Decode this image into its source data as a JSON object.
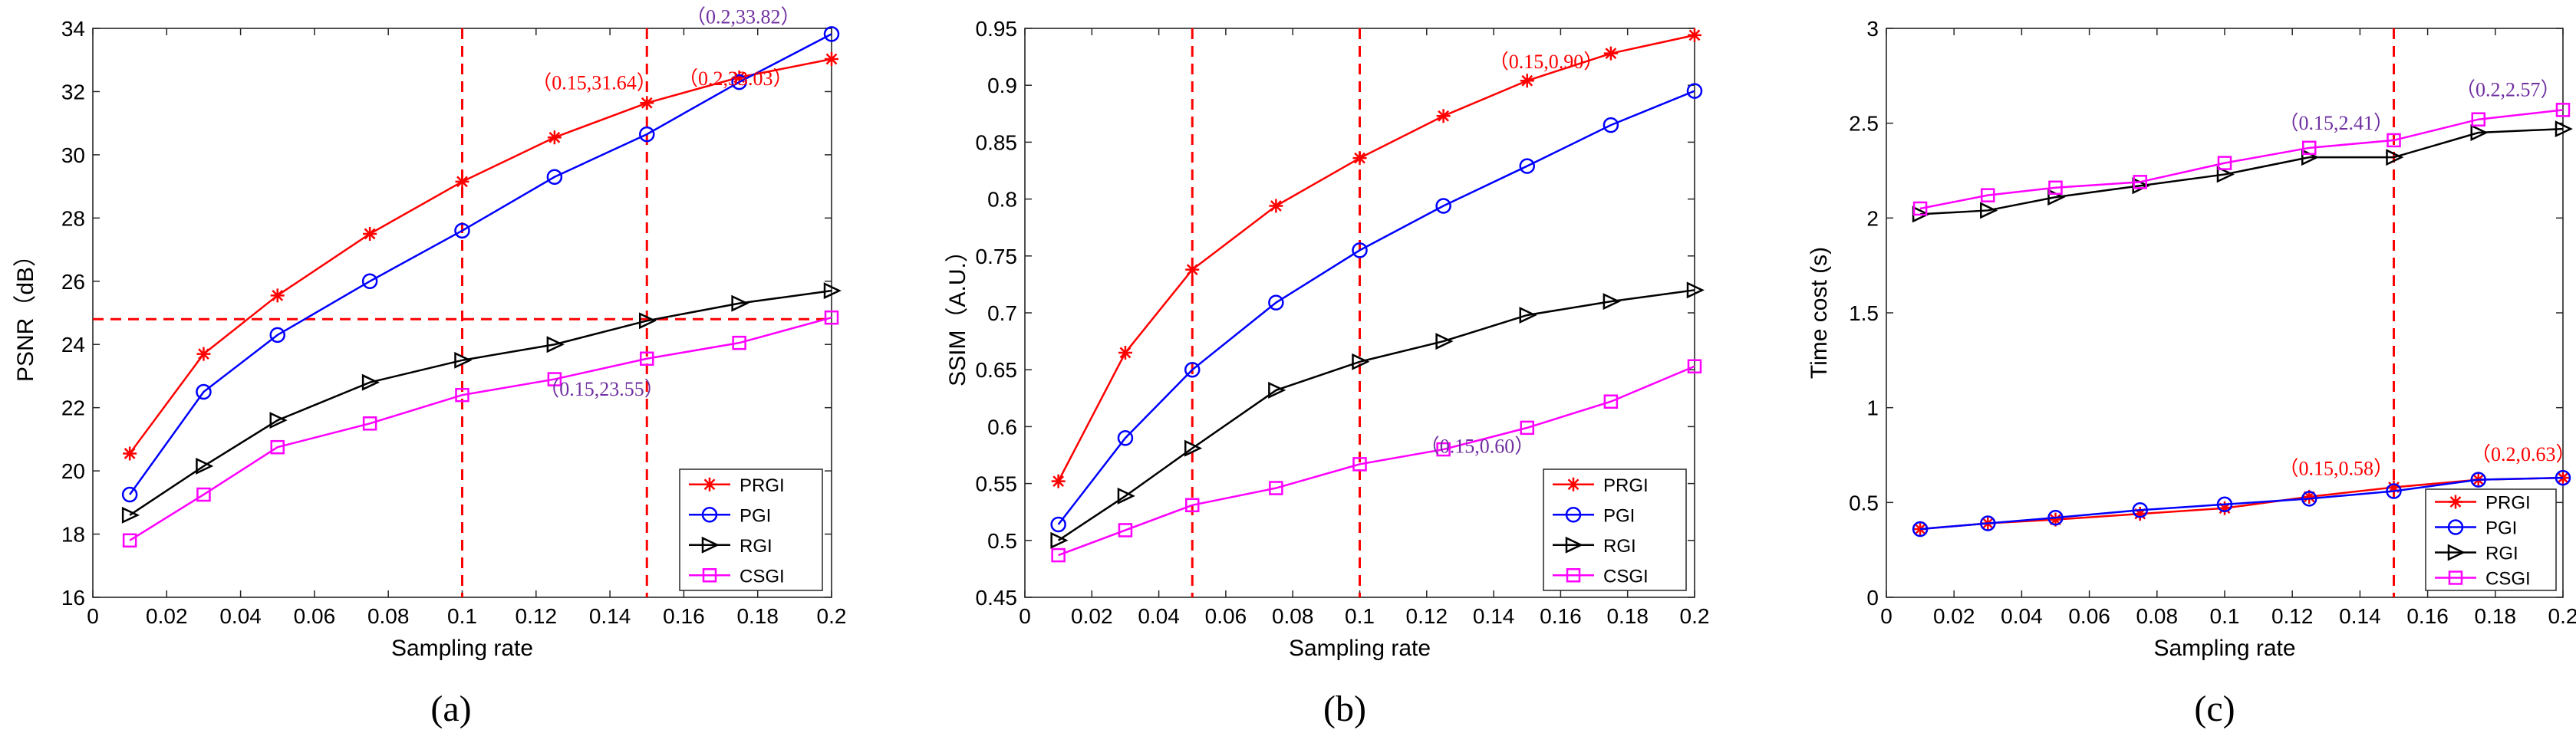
{
  "figure": {
    "panels": [
      "(a)",
      "(b)",
      "(c)"
    ]
  },
  "colors": {
    "PRGI": "#ff0000",
    "PGI": "#0000ff",
    "RGI": "#000000",
    "CSGI": "#ff00ff",
    "annot_red": "#ff0000",
    "annot_purple": "#7030a0",
    "ref_line": "#ff0000"
  },
  "chart_data": [
    {
      "type": "line",
      "panel_label": "(a)",
      "xlabel": "Sampling rate",
      "ylabel": "PSNR（dB）",
      "xlim": [
        0,
        0.2
      ],
      "ylim": [
        16,
        34
      ],
      "xticks": [
        0,
        0.02,
        0.04,
        0.06,
        0.08,
        0.1,
        0.12,
        0.14,
        0.16,
        0.18,
        0.2
      ],
      "xtick_labels": [
        "0",
        "0.02",
        "0.04",
        "0.06",
        "0.08",
        "0.1",
        "0.12",
        "0.14",
        "0.16",
        "0.18",
        "0.2"
      ],
      "yticks": [
        16,
        18,
        20,
        22,
        24,
        26,
        28,
        30,
        32,
        34
      ],
      "ytick_labels": [
        "16",
        "18",
        "20",
        "22",
        "24",
        "26",
        "28",
        "30",
        "32",
        "34"
      ],
      "x": [
        0.01,
        0.03,
        0.05,
        0.075,
        0.1,
        0.125,
        0.15,
        0.175,
        0.2
      ],
      "series": [
        {
          "name": "PRGI",
          "values": [
            20.55,
            23.7,
            25.55,
            27.5,
            29.15,
            30.55,
            31.64,
            32.45,
            33.03
          ]
        },
        {
          "name": "PGI",
          "values": [
            19.25,
            22.5,
            24.3,
            26.0,
            27.6,
            29.3,
            30.65,
            32.3,
            33.82
          ]
        },
        {
          "name": "RGI",
          "values": [
            18.6,
            20.15,
            21.6,
            22.8,
            23.5,
            24.0,
            24.75,
            25.3,
            25.7
          ]
        },
        {
          "name": "CSGI",
          "values": [
            17.8,
            19.25,
            20.75,
            21.5,
            22.4,
            22.9,
            23.55,
            24.05,
            24.85
          ]
        }
      ],
      "vlines": [
        0.1,
        0.15
      ],
      "hlines": [
        24.8
      ],
      "annotations": [
        {
          "text": "（0.15,31.64）",
          "x": 0.15,
          "y": 31.64,
          "color": "red"
        },
        {
          "text": "（0.2,33.82）",
          "x": 0.2,
          "y": 33.82,
          "color": "purple"
        },
        {
          "text": "（0.2,33.03）",
          "x": 0.2,
          "y": 33.03,
          "color": "red"
        },
        {
          "text": "（0.15,23.55）",
          "x": 0.15,
          "y": 23.55,
          "color": "purple"
        }
      ],
      "legend": "bottom-right"
    },
    {
      "type": "line",
      "panel_label": "(b)",
      "xlabel": "Sampling rate",
      "ylabel": "SSIM（A.U.）",
      "xlim": [
        0,
        0.2
      ],
      "ylim": [
        0.45,
        0.95
      ],
      "xticks": [
        0,
        0.02,
        0.04,
        0.06,
        0.08,
        0.1,
        0.12,
        0.14,
        0.16,
        0.18,
        0.2
      ],
      "xtick_labels": [
        "0",
        "0.02",
        "0.04",
        "0.06",
        "0.08",
        "0.1",
        "0.12",
        "0.14",
        "0.16",
        "0.18",
        "0.2"
      ],
      "yticks": [
        0.45,
        0.5,
        0.55,
        0.6,
        0.65,
        0.7,
        0.75,
        0.8,
        0.85,
        0.9,
        0.95
      ],
      "ytick_labels": [
        "0.45",
        "0.5",
        "0.55",
        "0.6",
        "0.65",
        "0.7",
        "0.75",
        "0.8",
        "0.85",
        "0.9",
        "0.95"
      ],
      "x": [
        0.01,
        0.03,
        0.05,
        0.075,
        0.1,
        0.125,
        0.15,
        0.175,
        0.2
      ],
      "series": [
        {
          "name": "PRGI",
          "values": [
            0.552,
            0.665,
            0.738,
            0.794,
            0.836,
            0.873,
            0.904,
            0.928,
            0.944
          ]
        },
        {
          "name": "PGI",
          "values": [
            0.514,
            0.59,
            0.65,
            0.709,
            0.755,
            0.794,
            0.829,
            0.865,
            0.895
          ]
        },
        {
          "name": "RGI",
          "values": [
            0.5,
            0.539,
            0.581,
            0.632,
            0.657,
            0.675,
            0.698,
            0.71,
            0.72
          ]
        },
        {
          "name": "CSGI",
          "values": [
            0.487,
            0.509,
            0.531,
            0.546,
            0.567,
            0.58,
            0.599,
            0.622,
            0.653
          ]
        }
      ],
      "vlines": [
        0.05,
        0.1
      ],
      "hlines": [],
      "annotations": [
        {
          "text": "（0.15,0.90）",
          "x": 0.15,
          "y": 0.9,
          "color": "red"
        },
        {
          "text": "（0.15,0.60）",
          "x": 0.15,
          "y": 0.6,
          "color": "purple"
        }
      ],
      "legend": "bottom-right"
    },
    {
      "type": "line",
      "panel_label": "(c)",
      "xlabel": "Sampling rate",
      "ylabel": "Time cost (s)",
      "xlim": [
        0,
        0.2
      ],
      "ylim": [
        0,
        3
      ],
      "xticks": [
        0,
        0.02,
        0.04,
        0.06,
        0.08,
        0.1,
        0.12,
        0.14,
        0.16,
        0.18,
        0.2
      ],
      "xtick_labels": [
        "0",
        "0.02",
        "0.04",
        "0.06",
        "0.08",
        "0.1",
        "0.12",
        "0.14",
        "0.16",
        "0.18",
        "0.2"
      ],
      "yticks": [
        0,
        0.5,
        1,
        1.5,
        2,
        2.5,
        3
      ],
      "ytick_labels": [
        "0",
        "0.5",
        "1",
        "1.5",
        "2",
        "2.5",
        "3"
      ],
      "x": [
        0.01,
        0.03,
        0.05,
        0.075,
        0.1,
        0.125,
        0.15,
        0.175,
        0.2
      ],
      "series": [
        {
          "name": "PRGI",
          "values": [
            0.36,
            0.39,
            0.41,
            0.44,
            0.47,
            0.53,
            0.58,
            0.62,
            0.63
          ]
        },
        {
          "name": "PGI",
          "values": [
            0.36,
            0.39,
            0.42,
            0.46,
            0.49,
            0.52,
            0.56,
            0.62,
            0.63
          ]
        },
        {
          "name": "RGI",
          "values": [
            2.02,
            2.04,
            2.11,
            2.17,
            2.23,
            2.32,
            2.32,
            2.45,
            2.47
          ]
        },
        {
          "name": "CSGI",
          "values": [
            2.05,
            2.12,
            2.16,
            2.19,
            2.29,
            2.37,
            2.41,
            2.52,
            2.57
          ]
        }
      ],
      "vlines": [
        0.15
      ],
      "hlines": [],
      "annotations": [
        {
          "text": "（0.15,2.41）",
          "x": 0.15,
          "y": 2.41,
          "color": "purple"
        },
        {
          "text": "（0.2,2.57）",
          "x": 0.2,
          "y": 2.57,
          "color": "purple"
        },
        {
          "text": "（0.15,0.58）",
          "x": 0.15,
          "y": 0.58,
          "color": "red"
        },
        {
          "text": "（0.2,0.63）",
          "x": 0.2,
          "y": 0.63,
          "color": "red"
        }
      ],
      "legend": "bottom-right"
    }
  ]
}
